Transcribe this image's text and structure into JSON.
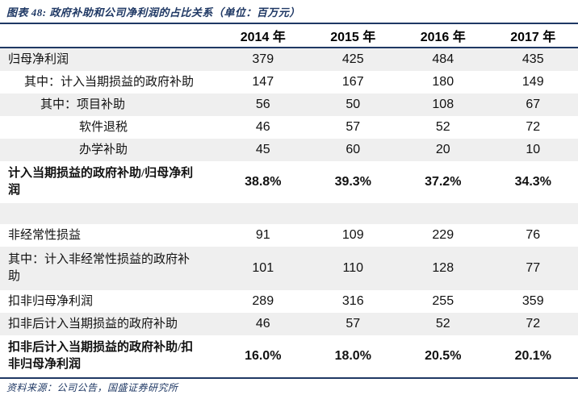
{
  "title": "图表 48: 政府补助和公司净利润的占比关系（单位：百万元）",
  "footer": "资料来源：公司公告，国盛证券研究所",
  "colors": {
    "accent_navy": "#1f3864",
    "row_stripe": "#efefef"
  },
  "table": {
    "columns": [
      "2014 年",
      "2015 年",
      "2016 年",
      "2017 年"
    ],
    "rows": [
      {
        "label": "归母净利润",
        "values": [
          "379",
          "425",
          "484",
          "435"
        ]
      },
      {
        "label": "其中：计入当期损益的政府补助",
        "values": [
          "147",
          "167",
          "180",
          "149"
        ]
      },
      {
        "label": "其中：项目补助",
        "values": [
          "56",
          "50",
          "108",
          "67"
        ]
      },
      {
        "label": "软件退税",
        "values": [
          "46",
          "57",
          "52",
          "72"
        ]
      },
      {
        "label": "办学补助",
        "values": [
          "45",
          "60",
          "20",
          "10"
        ]
      },
      {
        "label": "计入当期损益的政府补助/归母净利润",
        "values": [
          "38.8%",
          "39.3%",
          "37.2%",
          "34.3%"
        ]
      },
      {
        "label": "",
        "values": [
          "",
          "",
          "",
          ""
        ]
      },
      {
        "label": "非经常性损益",
        "values": [
          "91",
          "109",
          "229",
          "76"
        ]
      },
      {
        "label": "其中：计入非经常性损益的政府补助",
        "values": [
          "101",
          "110",
          "128",
          "77"
        ]
      },
      {
        "label": "扣非归母净利润",
        "values": [
          "289",
          "316",
          "255",
          "359"
        ]
      },
      {
        "label": "扣非后计入当期损益的政府补助",
        "values": [
          "46",
          "57",
          "52",
          "72"
        ]
      },
      {
        "label": "扣非后计入当期损益的政府补助/扣非归母净利润",
        "values": [
          "16.0%",
          "18.0%",
          "20.5%",
          "20.1%"
        ]
      }
    ]
  }
}
